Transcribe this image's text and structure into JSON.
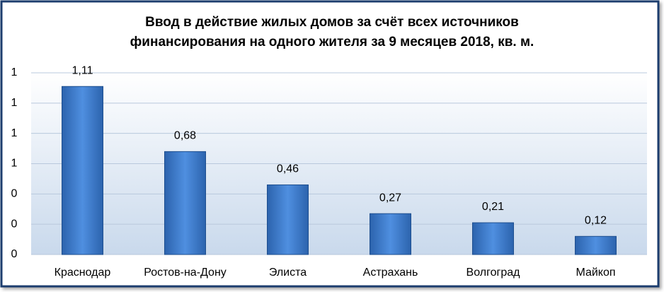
{
  "chart_data": {
    "type": "bar",
    "title": [
      "Ввод в действие жилых домов за счёт всех источников",
      "финансирования на одного жителя за 9 месяцев 2018, кв. м."
    ],
    "categories": [
      "Краснодар",
      "Ростов-на-Дону",
      "Элиста",
      "Астрахань",
      "Волгоград",
      "Майкоп"
    ],
    "values": [
      1.11,
      0.68,
      0.46,
      0.27,
      0.21,
      0.12
    ],
    "value_labels": [
      "1,11",
      "0,68",
      "0,46",
      "0,27",
      "0,21",
      "0,12"
    ],
    "color": "#3a78c8",
    "ylim": [
      0,
      1.2
    ],
    "yticks": [
      0,
      {
        "value": 0.2,
        "label": "0"
      },
      {
        "value": 0.4,
        "label": "0"
      },
      {
        "value": 0.6,
        "label": "1"
      },
      {
        "value": 0.8,
        "label": "1"
      },
      {
        "value": 1.0,
        "label": "1"
      },
      {
        "value": 1.2,
        "label": "1"
      }
    ],
    "grid": true
  }
}
